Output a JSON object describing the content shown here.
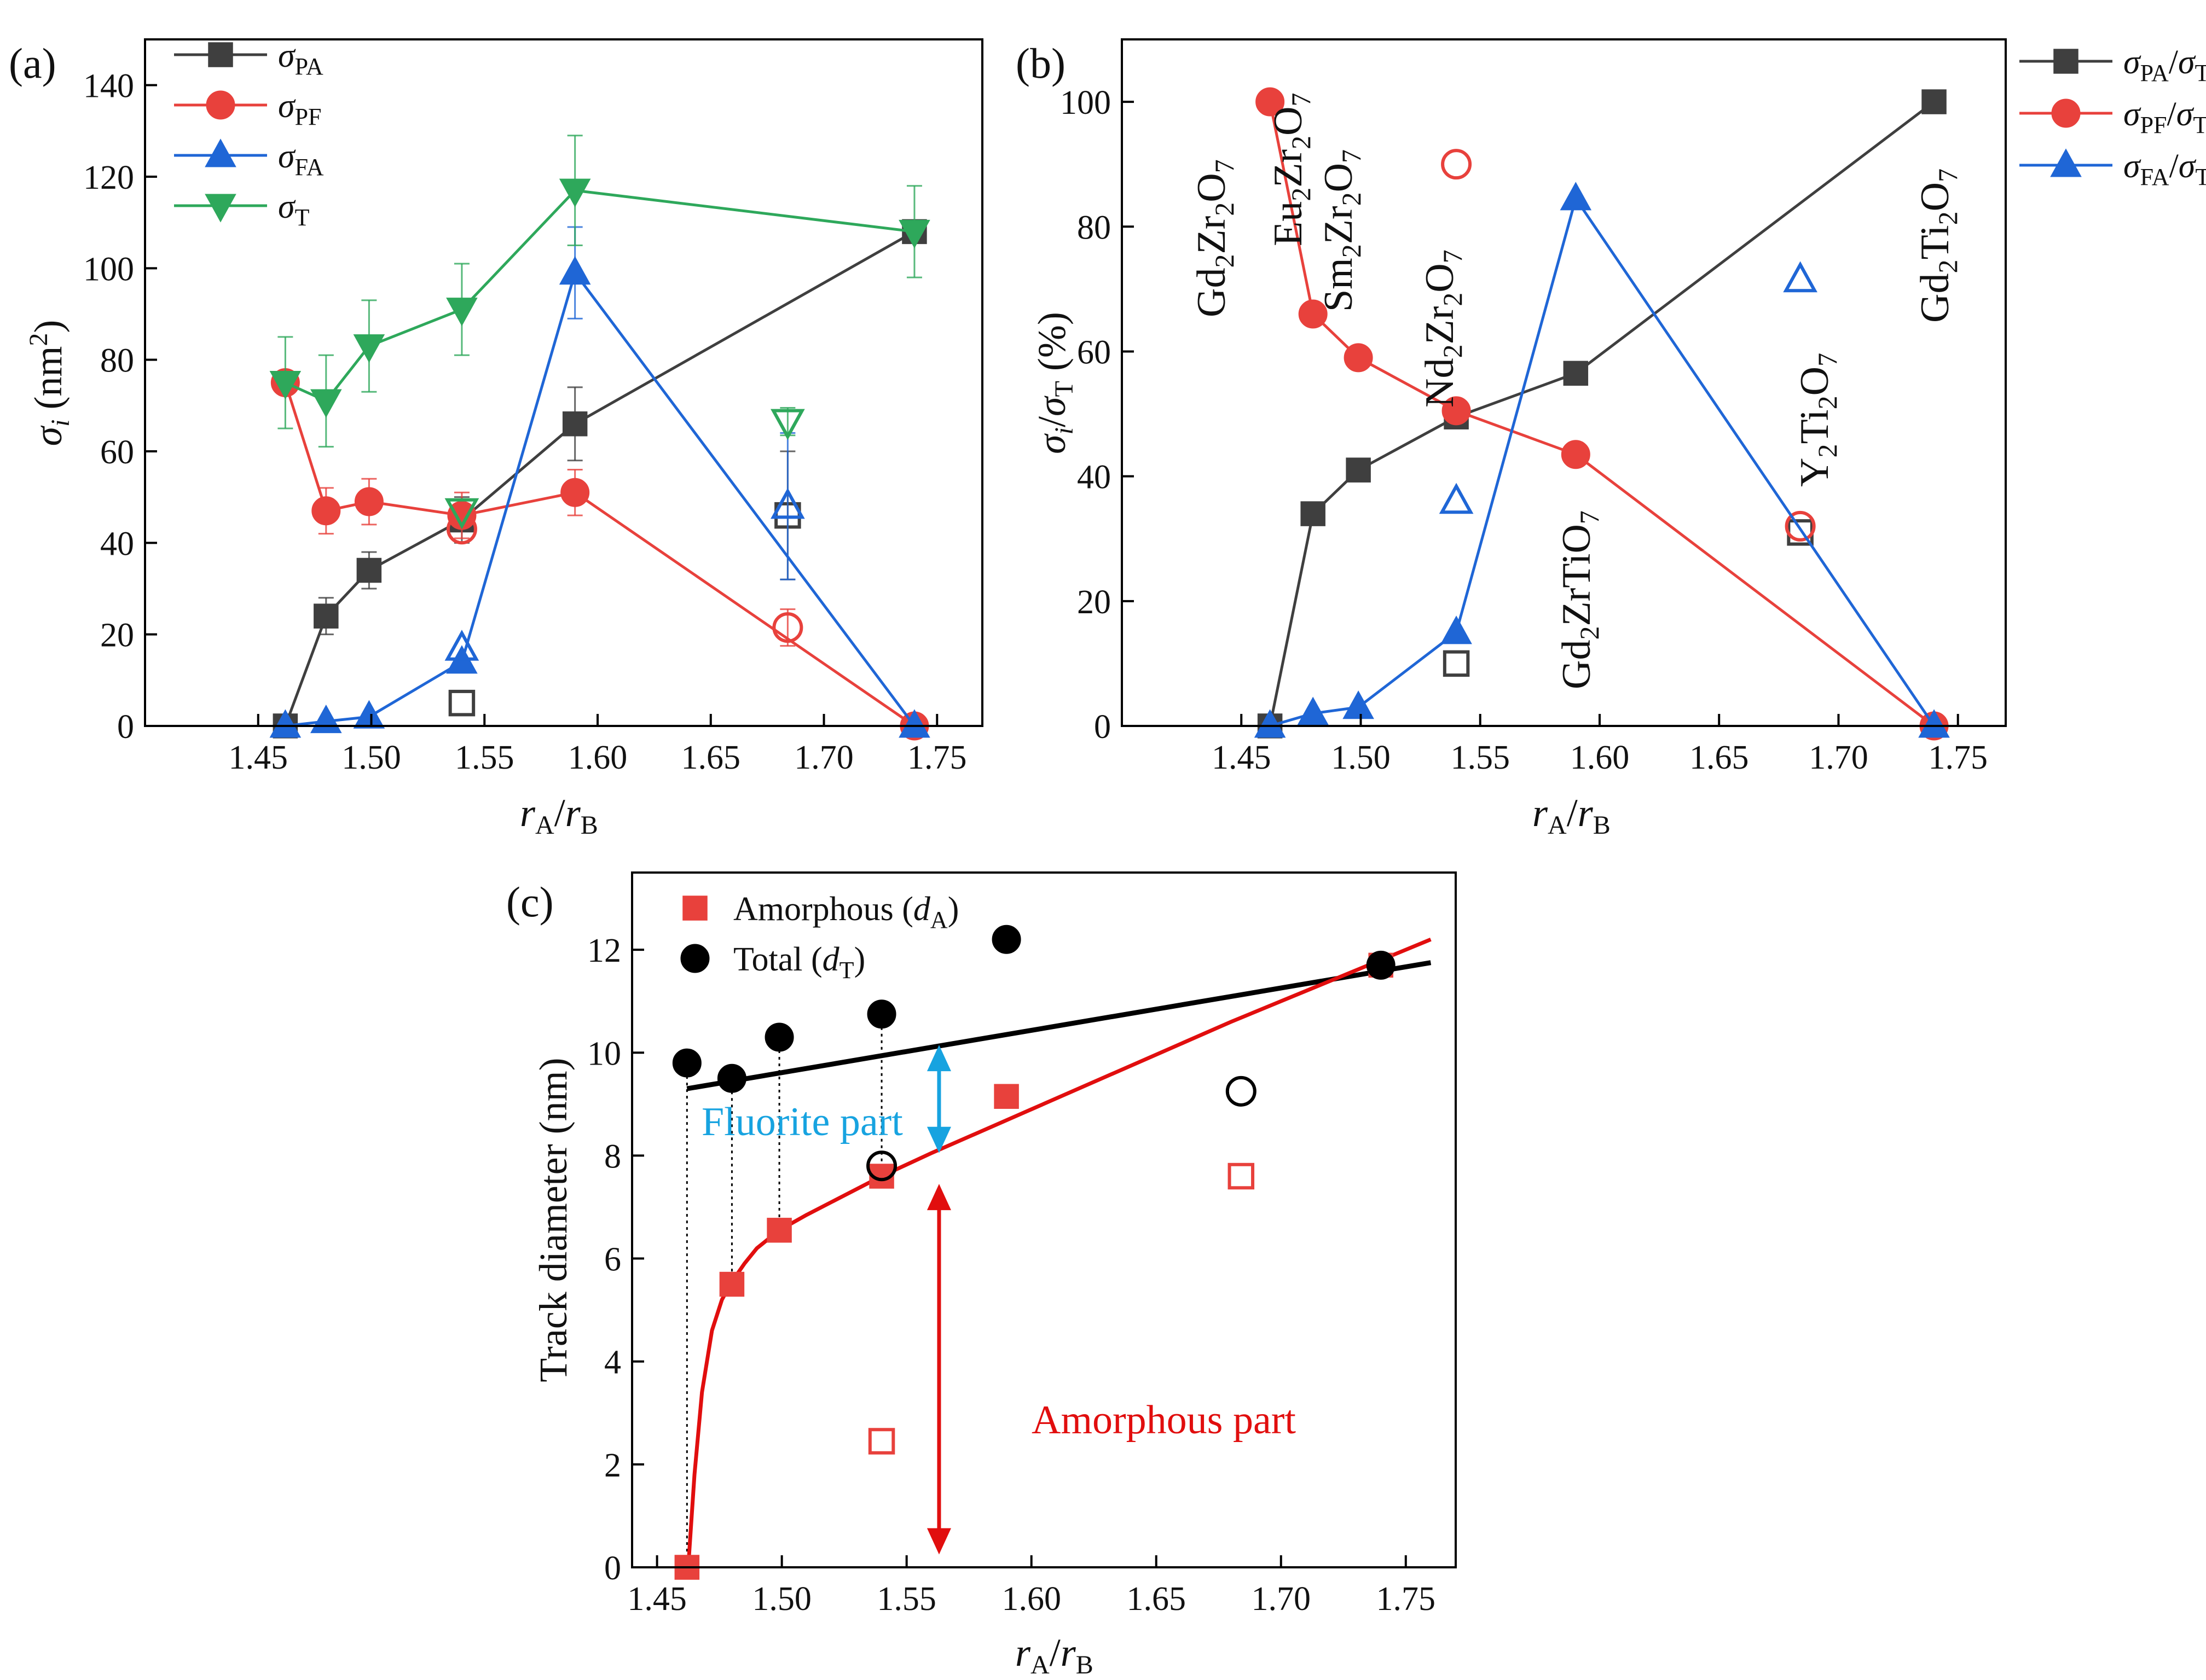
{
  "colors": {
    "black": "#3f3f3f",
    "red": "#e8413c",
    "blue": "#1f66d6",
    "green": "#2ea85b",
    "fitBlack": "#000000",
    "fitRed": "#e10e0e",
    "cyan": "#17a3e0"
  },
  "x_symbol": "r",
  "x_sub_A": "A",
  "x_sep": "/",
  "x_sub_B": "B",
  "chart_data": [
    {
      "panel": "(a)",
      "type": "line",
      "xlim": [
        1.4,
        1.77
      ],
      "ylim": [
        0,
        150
      ],
      "xticks": [
        "1.45",
        "1.50",
        "1.55",
        "1.60",
        "1.65",
        "1.70",
        "1.75"
      ],
      "yticks": [
        "0",
        "20",
        "40",
        "60",
        "80",
        "100",
        "120",
        "140"
      ],
      "ylabel": {
        "symbol": "σ",
        "sub": "i",
        "rest": " (nm",
        "sup": "2",
        "close": ")"
      },
      "series": [
        {
          "name": "σ",
          "sub": "PA",
          "color_key": "black",
          "marker": "square",
          "x": [
            1.462,
            1.48,
            1.499,
            1.54,
            1.59,
            1.74
          ],
          "y": [
            0,
            24,
            34,
            45,
            66,
            108
          ],
          "err": [
            0,
            4,
            4,
            5,
            8,
            0
          ],
          "open": [
            {
              "x": 1.54,
              "y": 5
            },
            {
              "x": 1.684,
              "y": 46,
              "err": 14
            }
          ]
        },
        {
          "name": "σ",
          "sub": "PF",
          "color_key": "red",
          "marker": "circle",
          "x": [
            1.462,
            1.48,
            1.499,
            1.54,
            1.59,
            1.74
          ],
          "y": [
            75,
            47,
            49,
            46,
            51,
            0
          ],
          "err": [
            0,
            5,
            5,
            5,
            5,
            0
          ],
          "open": [
            {
              "x": 1.54,
              "y": 43
            },
            {
              "x": 1.684,
              "y": 21.5,
              "err": 4
            }
          ]
        },
        {
          "name": "σ",
          "sub": "FA",
          "color_key": "blue",
          "marker": "triangle-up",
          "x": [
            1.462,
            1.48,
            1.499,
            1.54,
            1.59,
            1.74
          ],
          "y": [
            0,
            1,
            2,
            14,
            99,
            0
          ],
          "err": [
            0,
            0,
            0,
            0,
            10,
            0
          ],
          "open": [
            {
              "x": 1.54,
              "y": 17
            },
            {
              "x": 1.684,
              "y": 48,
              "err": 16
            }
          ]
        },
        {
          "name": "σ",
          "sub": "T",
          "color_key": "green",
          "marker": "triangle-down",
          "x": [
            1.462,
            1.48,
            1.499,
            1.54,
            1.59,
            1.74
          ],
          "y": [
            75,
            71,
            83,
            91,
            117,
            108
          ],
          "err": [
            10,
            10,
            10,
            10,
            12,
            10
          ],
          "open": [
            {
              "x": 1.54,
              "y": 47
            },
            {
              "x": 1.684,
              "y": 66.5,
              "err": 3
            }
          ]
        }
      ]
    },
    {
      "panel": "(b)",
      "type": "line",
      "xlim": [
        1.4,
        1.77
      ],
      "ylim": [
        0,
        110
      ],
      "xticks": [
        "1.45",
        "1.50",
        "1.55",
        "1.60",
        "1.65",
        "1.70",
        "1.75"
      ],
      "yticks": [
        "0",
        "20",
        "40",
        "60",
        "80",
        "100"
      ],
      "ylabel": {
        "symbol": "σ",
        "sub": "i",
        "slash": "/",
        "symbol2": "σ",
        "sub2": "T",
        "rest": " (%)"
      },
      "series": [
        {
          "name": "σ",
          "sub": "PA",
          "den": "σ",
          "den_sub": "T",
          "color_key": "black",
          "marker": "square",
          "x": [
            1.462,
            1.48,
            1.499,
            1.54,
            1.59,
            1.74
          ],
          "y": [
            0,
            34,
            41,
            49.5,
            56.5,
            100
          ],
          "open": [
            {
              "x": 1.54,
              "y": 10
            },
            {
              "x": 1.684,
              "y": 31
            }
          ]
        },
        {
          "name": "σ",
          "sub": "PF",
          "den": "σ",
          "den_sub": "T",
          "color_key": "red",
          "marker": "circle",
          "x": [
            1.462,
            1.48,
            1.499,
            1.54,
            1.59,
            1.74
          ],
          "y": [
            100,
            66,
            59,
            50.5,
            43.5,
            0
          ],
          "open": [
            {
              "x": 1.54,
              "y": 90
            },
            {
              "x": 1.684,
              "y": 32
            }
          ]
        },
        {
          "name": "σ",
          "sub": "FA",
          "den": "σ",
          "den_sub": "T",
          "color_key": "blue",
          "marker": "triangle-up",
          "x": [
            1.462,
            1.48,
            1.499,
            1.54,
            1.59,
            1.74
          ],
          "y": [
            0,
            2,
            3,
            15,
            84.5,
            0
          ],
          "open": [
            {
              "x": 1.54,
              "y": 36
            },
            {
              "x": 1.684,
              "y": 71.5
            }
          ]
        }
      ],
      "labels": [
        {
          "id": "gd2zr2o7",
          "parts": [
            "Gd",
            "2",
            "Zr",
            "2",
            "O",
            "7"
          ]
        },
        {
          "id": "eu2zr2o7",
          "parts": [
            "Eu",
            "2",
            "Zr",
            "2",
            "O",
            "7"
          ]
        },
        {
          "id": "sm2zr2o7",
          "parts": [
            "Sm",
            "2",
            "Zr",
            "2",
            "O",
            "7"
          ]
        },
        {
          "id": "nd2zr2o7",
          "parts": [
            "Nd",
            "2",
            "Zr",
            "2",
            "O",
            "7"
          ]
        },
        {
          "id": "gd2zrtio7",
          "parts": [
            "Gd",
            "2",
            "ZrTiO",
            "7"
          ]
        },
        {
          "id": "y2ti2o7",
          "parts": [
            "Y",
            "2",
            "Ti",
            "2",
            "O",
            "7"
          ]
        },
        {
          "id": "gd2ti2o7",
          "parts": [
            "Gd",
            "2",
            "Ti",
            "2",
            "O",
            "7"
          ]
        }
      ]
    },
    {
      "panel": "(c)",
      "type": "scatter",
      "xlim": [
        1.44,
        1.77
      ],
      "ylim": [
        0,
        13.5
      ],
      "xticks": [
        "1.45",
        "1.50",
        "1.55",
        "1.60",
        "1.65",
        "1.70",
        "1.75"
      ],
      "yticks": [
        "0",
        "2",
        "4",
        "6",
        "8",
        "10",
        "12"
      ],
      "ylabel": "Track diameter (nm)",
      "series": [
        {
          "name": "Amorphous (",
          "var": "d",
          "sub": "A",
          "close": ")",
          "color_key": "red",
          "marker": "square",
          "x": [
            1.462,
            1.48,
            1.499,
            1.54,
            1.59,
            1.74
          ],
          "y": [
            0,
            5.5,
            6.55,
            7.6,
            9.15,
            11.7
          ],
          "open": [
            {
              "x": 1.54,
              "y": 2.45
            },
            {
              "x": 1.684,
              "y": 7.6
            }
          ]
        },
        {
          "name": "Total (",
          "var": "d",
          "sub": "T",
          "close": ")",
          "color_key": "fitBlack",
          "marker": "circle",
          "x": [
            1.462,
            1.48,
            1.499,
            1.54,
            1.59,
            1.74
          ],
          "y": [
            9.8,
            9.5,
            10.3,
            10.75,
            12.2,
            11.7
          ],
          "open": [
            {
              "x": 1.54,
              "y": 7.8
            },
            {
              "x": 1.684,
              "y": 9.25
            }
          ]
        }
      ],
      "fit_total": {
        "x": [
          1.462,
          1.76
        ],
        "y": [
          9.3,
          11.75
        ]
      },
      "fit_amorphous": {
        "x": [
          1.4625,
          1.465,
          1.468,
          1.472,
          1.476,
          1.48,
          1.485,
          1.49,
          1.499,
          1.51,
          1.52,
          1.54,
          1.56,
          1.6,
          1.64,
          1.68,
          1.72,
          1.76
        ],
        "y": [
          0,
          1.8,
          3.4,
          4.6,
          5.2,
          5.55,
          5.9,
          6.2,
          6.55,
          6.85,
          7.1,
          7.6,
          8.05,
          8.9,
          9.75,
          10.6,
          11.4,
          12.2
        ]
      },
      "annotations": {
        "fluorite": "Fluorite part",
        "amorphous": "Amorphous part"
      }
    }
  ]
}
